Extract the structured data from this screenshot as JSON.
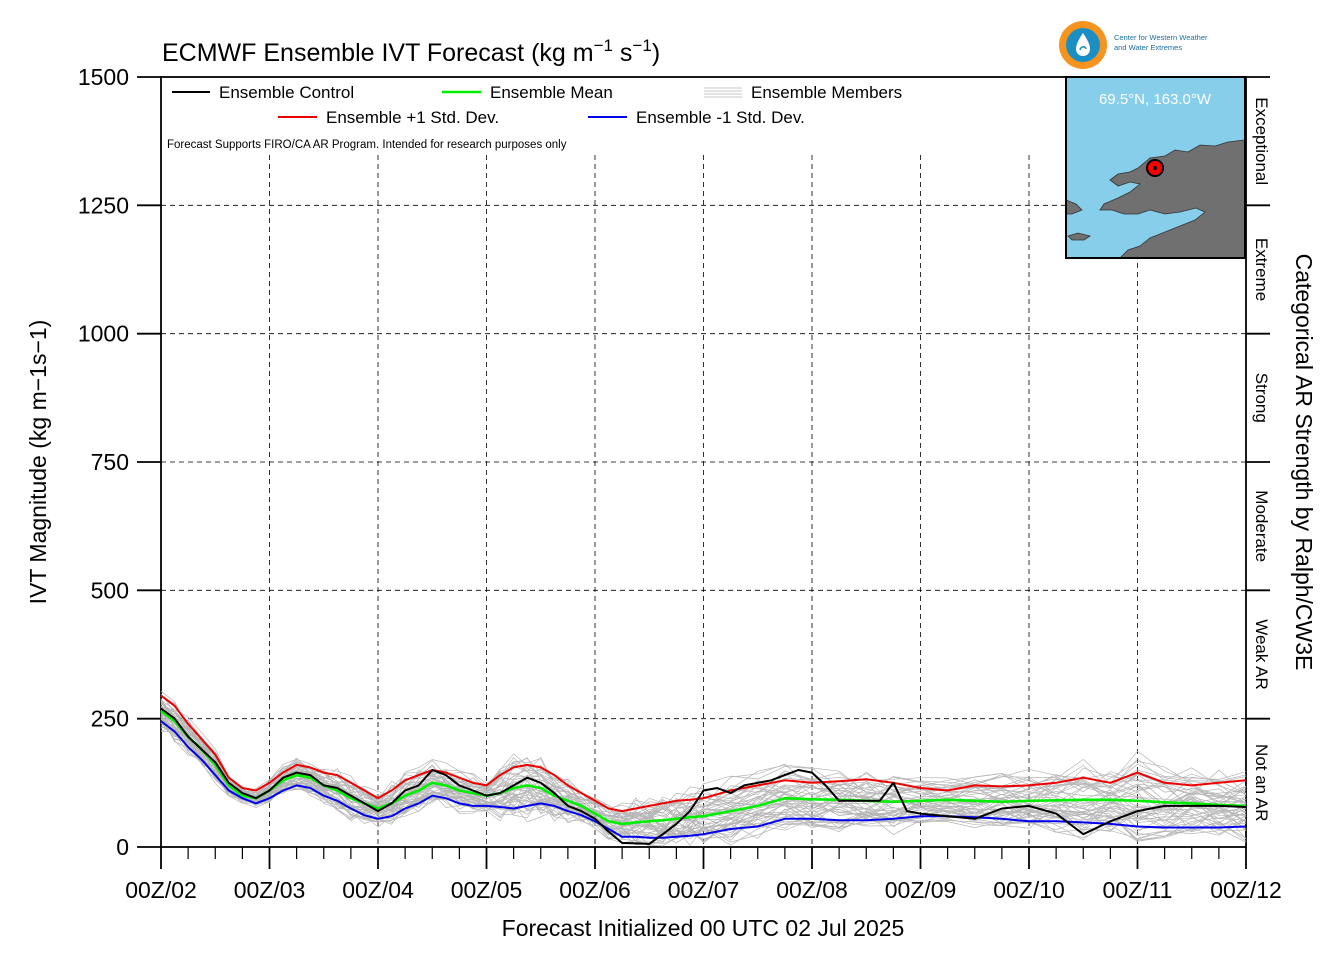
{
  "header": {
    "title": "ECMWF Ensemble IVT Forecast (kg m",
    "title_unit_1": "−1",
    "title_s": " s",
    "title_unit_2": "−1",
    "title_close": ")"
  },
  "logo": {
    "org_line_1": "Center for Western Weather",
    "org_line_2": "and Water Extremes",
    "ring_color": "#f7941d",
    "sea_color": "#1b8fc4"
  },
  "inset": {
    "location": "69.5°N, 163.0°W",
    "water_color": "#87ceeb",
    "land_color": "#707070",
    "marker_color": "#ff0000"
  },
  "side_label": "Categorical AR Strength by Ralph/CW3E",
  "categories": [
    {
      "name": "Not an AR",
      "from": 0,
      "to": 250
    },
    {
      "name": "Weak AR",
      "from": 250,
      "to": 500
    },
    {
      "name": "Moderate",
      "from": 500,
      "to": 750
    },
    {
      "name": "Strong",
      "from": 750,
      "to": 1000
    },
    {
      "name": "Extreme",
      "from": 1000,
      "to": 1250
    },
    {
      "name": "Exceptional",
      "from": 1250,
      "to": 1500
    }
  ],
  "note": "Forecast Supports FIRO/CA AR Program. Intended for research purposes only",
  "chart_data": {
    "type": "line",
    "title": "ECMWF Ensemble IVT Forecast (kg m−1 s−1)",
    "ylabel": "IVT Magnitude (kg m−1s−1)",
    "xlabel": "Forecast Initialized 00 UTC 02 Jul 2025",
    "ylim": [
      0,
      1500
    ],
    "xlim": [
      0,
      240
    ],
    "x_units": "forecast hours",
    "yticks": [
      0,
      250,
      500,
      750,
      1000,
      1250,
      1500
    ],
    "xticks": [
      0,
      24,
      48,
      72,
      96,
      120,
      144,
      168,
      192,
      216,
      240
    ],
    "xtick_labels": [
      "00Z/02",
      "00Z/03",
      "00Z/04",
      "00Z/05",
      "00Z/06",
      "00Z/07",
      "00Z/08",
      "00Z/09",
      "00Z/10",
      "00Z/11",
      "00Z/12"
    ],
    "grid": true,
    "legend_position": "top-left",
    "legend": [
      {
        "name": "Ensemble Control",
        "color": "#000000"
      },
      {
        "name": "Ensemble Mean",
        "color": "#00ee00"
      },
      {
        "name": "Ensemble Members",
        "color": "#b5b5b5"
      },
      {
        "name": "Ensemble +1 Std. Dev.",
        "color": "#ee0000"
      },
      {
        "name": "Ensemble -1 Std. Dev.",
        "color": "#0000ee"
      }
    ],
    "series": [
      {
        "name": "Ensemble Control",
        "color": "#000000",
        "x": [
          0,
          3,
          6,
          9,
          12,
          15,
          18,
          21,
          24,
          27,
          30,
          33,
          36,
          39,
          42,
          45,
          48,
          51,
          54,
          57,
          60,
          63,
          66,
          69,
          72,
          75,
          78,
          81,
          84,
          87,
          90,
          93,
          96,
          99,
          102,
          105,
          108,
          111,
          114,
          117,
          120,
          123,
          126,
          129,
          132,
          135,
          138,
          141,
          144,
          147,
          150,
          153,
          156,
          159,
          162,
          165,
          168,
          174,
          180,
          186,
          192,
          198,
          204,
          210,
          216,
          222,
          228,
          234,
          240
        ],
        "y": [
          270,
          250,
          215,
          190,
          165,
          125,
          105,
          95,
          110,
          135,
          145,
          140,
          120,
          115,
          100,
          85,
          70,
          85,
          110,
          120,
          150,
          140,
          120,
          110,
          100,
          105,
          120,
          135,
          125,
          105,
          80,
          70,
          55,
          30,
          8,
          7,
          6,
          25,
          45,
          70,
          110,
          115,
          105,
          120,
          125,
          130,
          140,
          150,
          145,
          120,
          90,
          90,
          90,
          90,
          125,
          70,
          65,
          60,
          55,
          75,
          80,
          65,
          25,
          50,
          70,
          80,
          80,
          80,
          78
        ]
      },
      {
        "name": "Ensemble Mean",
        "color": "#00ee00",
        "x": [
          0,
          3,
          6,
          9,
          12,
          15,
          18,
          21,
          24,
          27,
          30,
          33,
          36,
          39,
          42,
          45,
          48,
          51,
          54,
          57,
          60,
          63,
          66,
          69,
          72,
          75,
          78,
          81,
          84,
          87,
          90,
          93,
          96,
          99,
          102,
          105,
          108,
          111,
          114,
          117,
          120,
          126,
          132,
          138,
          144,
          150,
          156,
          162,
          168,
          174,
          180,
          186,
          192,
          198,
          204,
          210,
          216,
          222,
          228,
          234,
          240
        ],
        "y": [
          265,
          245,
          215,
          190,
          160,
          120,
          100,
          95,
          110,
          130,
          140,
          135,
          120,
          110,
          95,
          85,
          75,
          85,
          100,
          110,
          125,
          120,
          110,
          105,
          100,
          105,
          115,
          120,
          115,
          100,
          90,
          80,
          65,
          50,
          45,
          48,
          50,
          52,
          55,
          58,
          60,
          70,
          80,
          95,
          93,
          92,
          90,
          88,
          90,
          92,
          90,
          88,
          90,
          91,
          92,
          92,
          90,
          87,
          85,
          82,
          80
        ]
      },
      {
        "name": "Ensemble +1 Std. Dev.",
        "color": "#ee0000",
        "x": [
          0,
          3,
          6,
          9,
          12,
          15,
          18,
          21,
          24,
          27,
          30,
          33,
          36,
          39,
          42,
          45,
          48,
          51,
          54,
          57,
          60,
          63,
          66,
          69,
          72,
          75,
          78,
          81,
          84,
          87,
          90,
          93,
          96,
          99,
          102,
          105,
          108,
          111,
          114,
          117,
          120,
          126,
          132,
          138,
          144,
          150,
          156,
          162,
          168,
          174,
          180,
          186,
          192,
          198,
          204,
          210,
          216,
          222,
          228,
          234,
          240
        ],
        "y": [
          295,
          275,
          240,
          210,
          180,
          135,
          115,
          110,
          125,
          145,
          160,
          155,
          145,
          140,
          125,
          110,
          95,
          110,
          130,
          140,
          150,
          145,
          135,
          125,
          120,
          140,
          155,
          160,
          155,
          140,
          120,
          105,
          90,
          75,
          70,
          75,
          80,
          85,
          90,
          92,
          95,
          110,
          120,
          130,
          125,
          128,
          132,
          125,
          115,
          110,
          120,
          118,
          120,
          125,
          135,
          125,
          145,
          125,
          120,
          125,
          130
        ]
      },
      {
        "name": "Ensemble -1 Std. Dev.",
        "color": "#0000ee",
        "x": [
          0,
          3,
          6,
          9,
          12,
          15,
          18,
          21,
          24,
          27,
          30,
          33,
          36,
          39,
          42,
          45,
          48,
          51,
          54,
          57,
          60,
          63,
          66,
          69,
          72,
          75,
          78,
          81,
          84,
          87,
          90,
          93,
          96,
          99,
          102,
          105,
          108,
          111,
          114,
          117,
          120,
          126,
          132,
          138,
          144,
          150,
          156,
          162,
          168,
          174,
          180,
          186,
          192,
          198,
          204,
          210,
          216,
          222,
          228,
          234,
          240
        ],
        "y": [
          245,
          225,
          195,
          170,
          140,
          110,
          95,
          85,
          95,
          110,
          120,
          115,
          100,
          90,
          75,
          62,
          55,
          60,
          75,
          85,
          100,
          95,
          85,
          80,
          80,
          78,
          75,
          80,
          85,
          80,
          70,
          62,
          50,
          35,
          20,
          20,
          18,
          18,
          20,
          22,
          25,
          35,
          40,
          55,
          55,
          52,
          52,
          55,
          60,
          60,
          58,
          55,
          50,
          50,
          48,
          45,
          40,
          38,
          38,
          38,
          40
        ]
      }
    ],
    "members_summary": {
      "name": "Ensemble Members",
      "color": "#b5b5b5",
      "count": 50
    }
  }
}
